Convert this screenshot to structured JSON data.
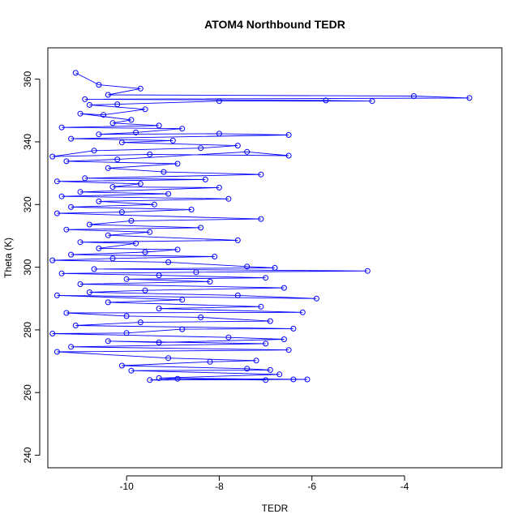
{
  "chart_data": {
    "type": "scatter",
    "title": "ATOM4 Northbound TEDR",
    "xlabel": "TEDR",
    "ylabel": "Theta (K)",
    "xlim": [
      -11.7,
      -1.9
    ],
    "ylim": [
      236,
      370
    ],
    "x_ticks": [
      -10,
      -8,
      -6,
      -4
    ],
    "y_ticks": [
      240,
      260,
      280,
      300,
      320,
      340,
      360
    ],
    "grid": false,
    "legend": "none",
    "colors": {
      "series": "#0000ff",
      "axis": "#000000",
      "background": "#ffffff"
    },
    "style": "points connected by lines (open circles)",
    "series": [
      {
        "values": [
          [
            -11.1,
            362.0
          ],
          [
            -10.6,
            358.2
          ],
          [
            -9.7,
            357.0
          ],
          [
            -10.4,
            355.0
          ],
          [
            -3.8,
            354.6
          ],
          [
            -2.6,
            354.0
          ],
          [
            -10.9,
            353.6
          ],
          [
            -5.7,
            353.2
          ],
          [
            -4.7,
            353.0
          ],
          [
            -8.0,
            353.0
          ],
          [
            -10.2,
            352.0
          ],
          [
            -10.8,
            351.8
          ],
          [
            -9.6,
            350.4
          ],
          [
            -10.5,
            348.6
          ],
          [
            -11.0,
            349.0
          ],
          [
            -9.9,
            347.0
          ],
          [
            -10.3,
            346.0
          ],
          [
            -9.3,
            345.2
          ],
          [
            -11.4,
            344.6
          ],
          [
            -8.8,
            344.2
          ],
          [
            -9.8,
            343.0
          ],
          [
            -10.6,
            342.4
          ],
          [
            -8.0,
            342.6
          ],
          [
            -6.5,
            342.2
          ],
          [
            -11.2,
            341.0
          ],
          [
            -9.0,
            340.4
          ],
          [
            -10.1,
            339.8
          ],
          [
            -7.6,
            338.8
          ],
          [
            -8.4,
            338.0
          ],
          [
            -10.7,
            337.2
          ],
          [
            -11.6,
            335.3
          ],
          [
            -9.5,
            336.0
          ],
          [
            -6.5,
            335.6
          ],
          [
            -7.4,
            336.8
          ],
          [
            -10.2,
            334.4
          ],
          [
            -11.3,
            333.8
          ],
          [
            -8.9,
            333.0
          ],
          [
            -10.4,
            331.6
          ],
          [
            -9.2,
            330.4
          ],
          [
            -7.1,
            329.6
          ],
          [
            -10.9,
            328.4
          ],
          [
            -8.3,
            328.0
          ],
          [
            -11.5,
            327.4
          ],
          [
            -9.7,
            326.6
          ],
          [
            -10.3,
            325.6
          ],
          [
            -8.0,
            325.4
          ],
          [
            -11.0,
            324.0
          ],
          [
            -9.1,
            323.4
          ],
          [
            -11.4,
            322.6
          ],
          [
            -7.8,
            321.8
          ],
          [
            -10.6,
            321.0
          ],
          [
            -9.4,
            320.0
          ],
          [
            -11.2,
            319.2
          ],
          [
            -8.6,
            318.4
          ],
          [
            -10.1,
            317.6
          ],
          [
            -11.5,
            317.2
          ],
          [
            -7.1,
            315.4
          ],
          [
            -9.9,
            314.8
          ],
          [
            -10.8,
            313.6
          ],
          [
            -8.4,
            312.6
          ],
          [
            -11.3,
            312.0
          ],
          [
            -9.5,
            311.2
          ],
          [
            -10.4,
            310.2
          ],
          [
            -7.6,
            308.6
          ],
          [
            -11.0,
            308.0
          ],
          [
            -9.8,
            307.6
          ],
          [
            -10.6,
            306.0
          ],
          [
            -8.9,
            305.6
          ],
          [
            -9.6,
            304.8
          ],
          [
            -11.2,
            304.0
          ],
          [
            -8.1,
            303.4
          ],
          [
            -10.3,
            302.8
          ],
          [
            -11.6,
            302.2
          ],
          [
            -9.1,
            301.6
          ],
          [
            -7.4,
            300.2
          ],
          [
            -6.8,
            299.8
          ],
          [
            -10.7,
            299.4
          ],
          [
            -4.8,
            298.8
          ],
          [
            -8.5,
            298.4
          ],
          [
            -11.4,
            298.0
          ],
          [
            -9.3,
            297.4
          ],
          [
            -7.0,
            296.6
          ],
          [
            -10.0,
            296.2
          ],
          [
            -8.2,
            295.4
          ],
          [
            -11.0,
            294.6
          ],
          [
            -6.6,
            293.4
          ],
          [
            -9.6,
            292.6
          ],
          [
            -10.8,
            292.0
          ],
          [
            -7.6,
            291.0
          ],
          [
            -5.9,
            290.0
          ],
          [
            -11.5,
            291.0
          ],
          [
            -8.8,
            289.6
          ],
          [
            -10.4,
            288.8
          ],
          [
            -7.1,
            287.4
          ],
          [
            -9.3,
            286.8
          ],
          [
            -6.2,
            285.6
          ],
          [
            -11.3,
            285.4
          ],
          [
            -10.0,
            284.4
          ],
          [
            -8.4,
            284.0
          ],
          [
            -6.9,
            282.8
          ],
          [
            -9.7,
            282.4
          ],
          [
            -11.1,
            281.4
          ],
          [
            -6.4,
            280.4
          ],
          [
            -8.8,
            280.2
          ],
          [
            -10.0,
            279.0
          ],
          [
            -11.6,
            278.8
          ],
          [
            -7.8,
            277.6
          ],
          [
            -6.6,
            277.0
          ],
          [
            -9.3,
            276.0
          ],
          [
            -10.4,
            276.4
          ],
          [
            -7.0,
            275.6
          ],
          [
            -11.2,
            274.6
          ],
          [
            -6.5,
            273.6
          ],
          [
            -11.5,
            273.0
          ],
          [
            -9.1,
            271.0
          ],
          [
            -7.2,
            270.2
          ],
          [
            -8.2,
            269.8
          ],
          [
            -10.1,
            268.6
          ],
          [
            -7.4,
            267.6
          ],
          [
            -6.9,
            267.2
          ],
          [
            -9.9,
            267.0
          ],
          [
            -6.7,
            265.8
          ],
          [
            -9.3,
            264.6
          ],
          [
            -6.1,
            264.2
          ],
          [
            -6.4,
            264.2
          ],
          [
            -9.5,
            264.0
          ],
          [
            -8.9,
            264.4
          ],
          [
            -7.0,
            264.0
          ]
        ]
      }
    ]
  }
}
